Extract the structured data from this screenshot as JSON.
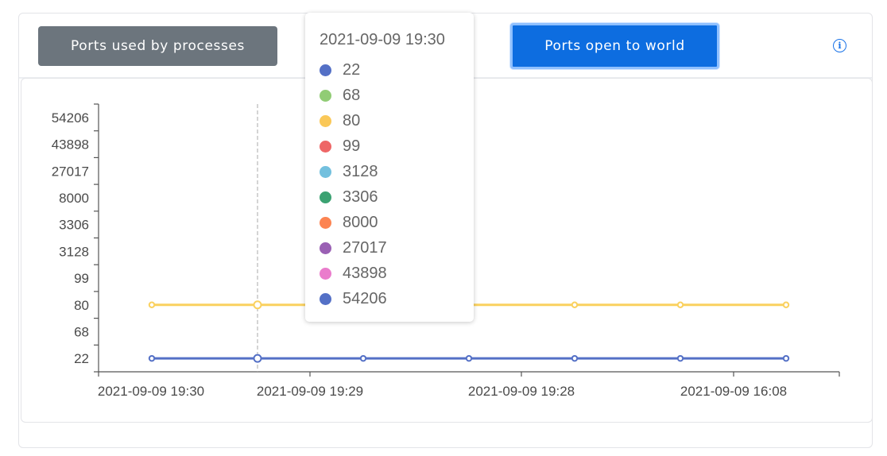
{
  "header": {
    "btn_processes_label": "Ports used by processes",
    "btn_world_label": "Ports open to world",
    "info_icon": "info-icon"
  },
  "colors": {
    "btn_processes_bg": "#6c757d",
    "btn_world_bg": "#0d6de0",
    "series_80": "#fad15f",
    "series_22": "#5470c6"
  },
  "chart_data": {
    "type": "line",
    "title": "",
    "xlabel": "",
    "ylabel": "",
    "grid": false,
    "x_tick_labels": [
      "2021-09-09 19:30",
      "2021-09-09 19:29",
      "2021-09-09 19:28",
      "2021-09-09 16:08"
    ],
    "y_categories": [
      "22",
      "68",
      "80",
      "99",
      "3128",
      "3306",
      "8000",
      "27017",
      "43898",
      "54206"
    ],
    "x_points": 7,
    "series": [
      {
        "name": "22",
        "color": "#5470c6",
        "values": [
          "22",
          "22",
          "22",
          "22",
          "22",
          "22",
          "22"
        ]
      },
      {
        "name": "80",
        "color": "#fad15f",
        "values": [
          "80",
          "80",
          null,
          null,
          "80",
          "80",
          "80"
        ]
      }
    ],
    "highlight_index": 1
  },
  "tooltip": {
    "title": "2021-09-09 19:30",
    "items": [
      {
        "label": "22",
        "color": "#5470c6"
      },
      {
        "label": "68",
        "color": "#91cc75"
      },
      {
        "label": "80",
        "color": "#fac858"
      },
      {
        "label": "99",
        "color": "#ee6666"
      },
      {
        "label": "3128",
        "color": "#73c0de"
      },
      {
        "label": "3306",
        "color": "#3ba272"
      },
      {
        "label": "8000",
        "color": "#fc8452"
      },
      {
        "label": "27017",
        "color": "#9a60b4"
      },
      {
        "label": "43898",
        "color": "#ea7ccc"
      },
      {
        "label": "54206",
        "color": "#5470c6"
      }
    ]
  }
}
